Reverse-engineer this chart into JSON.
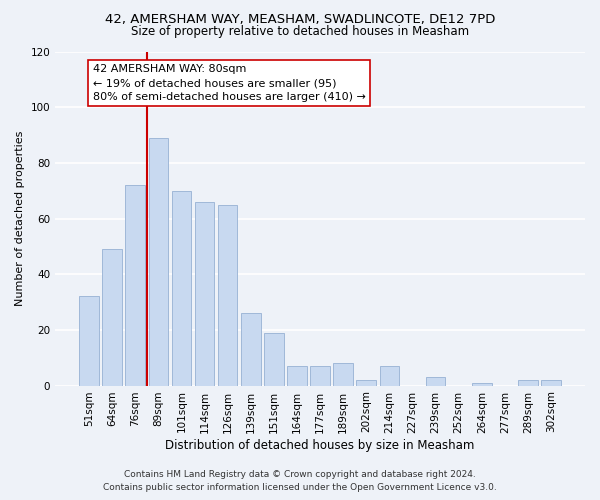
{
  "title_line1": "42, AMERSHAM WAY, MEASHAM, SWADLINCOTE, DE12 7PD",
  "title_line2": "Size of property relative to detached houses in Measham",
  "xlabel": "Distribution of detached houses by size in Measham",
  "ylabel": "Number of detached properties",
  "bar_labels": [
    "51sqm",
    "64sqm",
    "76sqm",
    "89sqm",
    "101sqm",
    "114sqm",
    "126sqm",
    "139sqm",
    "151sqm",
    "164sqm",
    "177sqm",
    "189sqm",
    "202sqm",
    "214sqm",
    "227sqm",
    "239sqm",
    "252sqm",
    "264sqm",
    "277sqm",
    "289sqm",
    "302sqm"
  ],
  "bar_values": [
    32,
    49,
    72,
    89,
    70,
    66,
    65,
    26,
    19,
    7,
    7,
    8,
    2,
    7,
    0,
    3,
    0,
    1,
    0,
    2,
    2
  ],
  "bar_color": "#c8d9f0",
  "bar_edge_color": "#a0b8d8",
  "vline_color": "#cc0000",
  "ylim": [
    0,
    120
  ],
  "yticks": [
    0,
    20,
    40,
    60,
    80,
    100,
    120
  ],
  "annotation_line1": "42 AMERSHAM WAY: 80sqm",
  "annotation_line2": "← 19% of detached houses are smaller (95)",
  "annotation_line3": "80% of semi-detached houses are larger (410) →",
  "footer_line1": "Contains HM Land Registry data © Crown copyright and database right 2024.",
  "footer_line2": "Contains public sector information licensed under the Open Government Licence v3.0.",
  "background_color": "#eef2f8",
  "grid_color": "#ffffff",
  "title1_fontsize": 9.5,
  "title2_fontsize": 8.5,
  "xlabel_fontsize": 8.5,
  "ylabel_fontsize": 8.0,
  "tick_fontsize": 7.5,
  "footer_fontsize": 6.5,
  "annotation_fontsize": 8.0
}
